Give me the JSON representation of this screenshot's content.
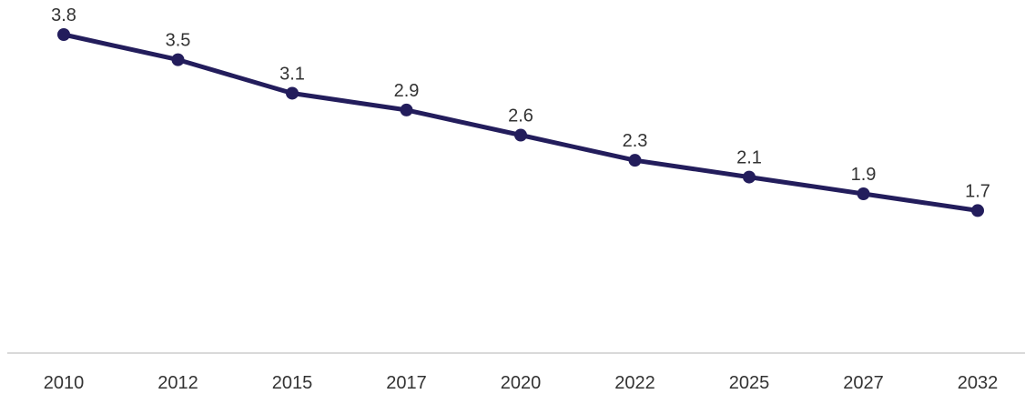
{
  "chart_data": {
    "type": "line",
    "title": "",
    "xlabel": "",
    "ylabel": "",
    "categories": [
      "2010",
      "2012",
      "2015",
      "2017",
      "2020",
      "2022",
      "2025",
      "2027",
      "2032"
    ],
    "series": [
      {
        "values": [
          3.8,
          3.5,
          3.1,
          2.9,
          2.6,
          2.3,
          2.1,
          1.9,
          1.7
        ]
      }
    ],
    "data_labels": [
      "3.8",
      "3.5",
      "3.1",
      "2.9",
      "2.6",
      "2.3",
      "2.1",
      "1.9",
      "1.7"
    ],
    "ylim": [
      0,
      4.2
    ],
    "grid": false,
    "y_axis_visible": false,
    "line_color": "#231d5c",
    "baseline_color": "#d9d9d9"
  }
}
